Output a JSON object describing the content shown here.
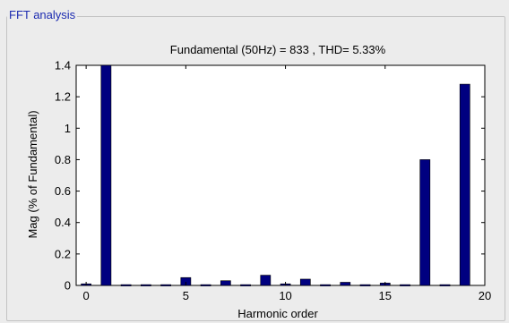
{
  "panel": {
    "title": "FFT analysis"
  },
  "chart_data": {
    "type": "bar",
    "title": "Fundamental (50Hz) = 833 , THD= 5.33%",
    "xlabel": "Harmonic order",
    "ylabel": "Mag (% of Fundamental)",
    "xlim": [
      -0.5,
      20
    ],
    "ylim": [
      0,
      1.4
    ],
    "xticks": [
      0,
      5,
      10,
      15,
      20
    ],
    "yticks": [
      0,
      0.2,
      0.4,
      0.6,
      0.8,
      1,
      1.2,
      1.4
    ],
    "grid": false,
    "bar_color": "#000080",
    "x": [
      0,
      1,
      2,
      3,
      4,
      5,
      6,
      7,
      8,
      9,
      10,
      11,
      12,
      13,
      14,
      15,
      16,
      17,
      18,
      19
    ],
    "values": [
      0.01,
      1.4,
      0.005,
      0.005,
      0.005,
      0.05,
      0.005,
      0.03,
      0.005,
      0.065,
      0.01,
      0.04,
      0.005,
      0.02,
      0.005,
      0.015,
      0.005,
      0.8,
      0.005,
      1.28
    ]
  }
}
